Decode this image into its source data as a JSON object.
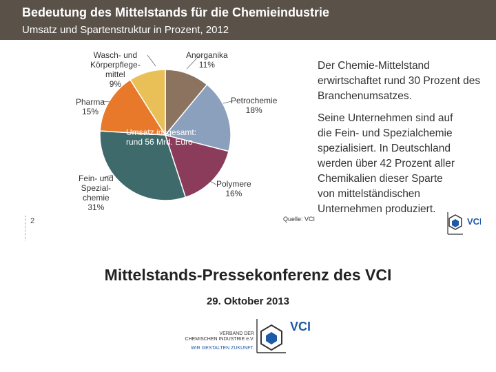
{
  "header": {
    "title": "Bedeutung des Mittelstands für die Chemieindustrie",
    "subtitle": "Umsatz und Spartenstruktur in Prozent, 2012"
  },
  "chart_data": {
    "type": "pie",
    "title": "Bedeutung des Mittelstands für die Chemieindustrie",
    "subtitle": "Umsatz und Spartenstruktur in Prozent, 2012",
    "center_label": "Umsatz insgesamt: rund 56 Mrd. Euro",
    "slices": [
      {
        "label": "Anorganika",
        "value": 11,
        "color": "#8b7360"
      },
      {
        "label": "Petrochemie",
        "value": 18,
        "color": "#8aa0bc"
      },
      {
        "label": "Polymere",
        "value": 16,
        "color": "#8a3c5a"
      },
      {
        "label": "Fein- und Spezialchemie",
        "value": 31,
        "color": "#3f6a6c"
      },
      {
        "label": "Pharma",
        "value": 15,
        "color": "#e8792a"
      },
      {
        "label": "Wasch- und Körperpflegemittel",
        "value": 9,
        "color": "#e9bf58"
      }
    ],
    "label_text": {
      "wasch": [
        "Wasch- und",
        "Körperpflege-",
        "mittel",
        "9%"
      ],
      "anorganika": [
        "Anorganika",
        "11%"
      ],
      "petrochemie": [
        "Petrochemie",
        "18%"
      ],
      "polymere": [
        "Polymere",
        "16%"
      ],
      "fein": [
        "Fein- und",
        "Spezial-",
        "chemie",
        "31%"
      ],
      "pharma": [
        "Pharma",
        "15%"
      ]
    },
    "center_lines": [
      "Umsatz insgesamt:",
      "rund 56 Mrd. Euro"
    ]
  },
  "side_text": {
    "para1": [
      "Der Chemie-Mittelstand",
      "erwirtschaftet rund 30 Prozent des",
      "Branchenumsatzes."
    ],
    "para2": [
      "Seine Unternehmen sind auf",
      "die Fein- und Spezialchemie",
      "spezialisiert. In Deutschland",
      "werden über 42 Prozent aller",
      "Chemikalien dieser Sparte",
      "von mittelständischen",
      "Unternehmen produziert."
    ]
  },
  "page_number": "2",
  "source": "Quelle: VCI",
  "conference": {
    "title": "Mittelstands-Pressekonferenz des VCI",
    "date": "29. Oktober 2013"
  },
  "logo": {
    "abbr": "VCI",
    "line1": "VERBAND DER",
    "line2": "CHEMISCHEN INDUSTRIE e.V.",
    "tagline": "WIR GESTALTEN ZUKUNFT.",
    "color": "#1f5aa8"
  }
}
